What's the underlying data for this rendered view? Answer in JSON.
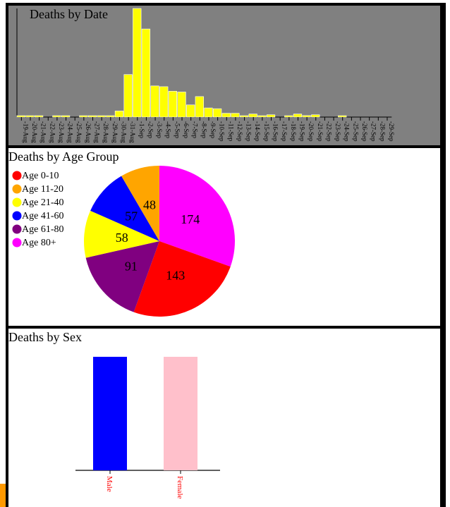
{
  "chart_data": [
    {
      "type": "bar",
      "title": "Deaths by Date",
      "categories": [
        "19-Aug",
        "20-Aug",
        "21-Aug",
        "22-Aug",
        "23-Aug",
        "24-Aug",
        "25-Aug",
        "26-Aug",
        "27-Aug",
        "28-Aug",
        "29-Aug",
        "30-Aug",
        "31-Aug",
        "1-Sep",
        "2-Sep",
        "3-Sep",
        "4-Sep",
        "5-Sep",
        "6-Sep",
        "7-Sep",
        "8-Sep",
        "9-Sep",
        "10-Sep",
        "11-Sep",
        "12-Sep",
        "13-Sep",
        "14-Sep",
        "15-Sep",
        "16-Sep",
        "17-Sep",
        "18-Sep",
        "19-Sep",
        "20-Sep",
        "21-Sep",
        "22-Sep",
        "23-Sep",
        "24-Sep",
        "25-Sep",
        "26-Sep",
        "27-Sep",
        "28-Sep",
        "29-Sep"
      ],
      "values": [
        1,
        1,
        1,
        0,
        1,
        1,
        0,
        1,
        1,
        1,
        1,
        8,
        56,
        143,
        116,
        41,
        40,
        34,
        33,
        16,
        27,
        12,
        11,
        5,
        5,
        1,
        4,
        1,
        3,
        0,
        1,
        4,
        2,
        3,
        0,
        0,
        1,
        0,
        0,
        0,
        0,
        0
      ],
      "ylim": [
        0,
        143
      ],
      "colors": {
        "bar": "#ffff00",
        "background": "#808080",
        "axis": "#000000"
      }
    },
    {
      "type": "pie",
      "title": "Deaths by Age Group",
      "legend_position": "left",
      "slices": [
        {
          "label": "Age 0-10",
          "value": 143,
          "color": "#ff0000"
        },
        {
          "label": "Age 11-20",
          "value": 48,
          "color": "#ffa500"
        },
        {
          "label": "Age 21-40",
          "value": 58,
          "color": "#ffff00"
        },
        {
          "label": "Age 41-60",
          "value": 57,
          "color": "#0000ff"
        },
        {
          "label": "Age 61-80",
          "value": 91,
          "color": "#800080"
        },
        {
          "label": "Age 80+",
          "value": 174,
          "color": "#ff00ff"
        }
      ]
    },
    {
      "type": "bar",
      "title": "Deaths by Sex",
      "categories": [
        "Male",
        "Female"
      ],
      "values": [
        1,
        1
      ],
      "colors": [
        "#0000ff",
        "#ffc0cb"
      ],
      "tick_label_color": "#ff0000"
    }
  ]
}
